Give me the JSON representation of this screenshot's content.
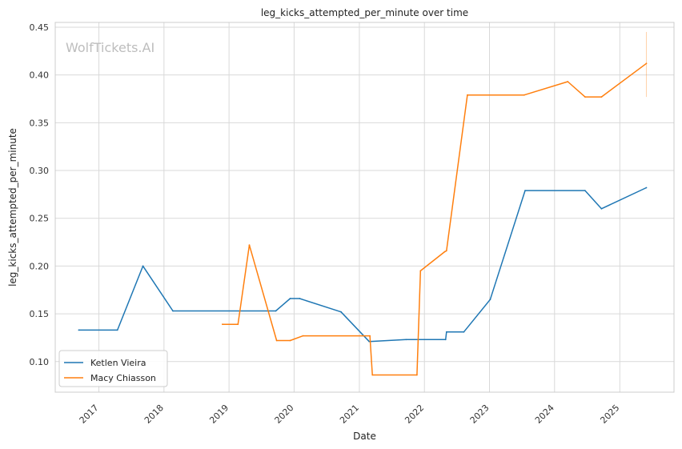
{
  "chart_data": {
    "type": "line",
    "title": "leg_kicks_attempted_per_minute over time",
    "xlabel": "Date",
    "ylabel": "leg_kicks_attempted_per_minute",
    "watermark": "WolfTickets.AI",
    "xlim": [
      "2016-05-01",
      "2025-11-01"
    ],
    "ylim": [
      0.068,
      0.455
    ],
    "x_ticks": [
      "2017-01-01",
      "2018-01-01",
      "2019-01-01",
      "2020-01-01",
      "2021-01-01",
      "2022-01-01",
      "2023-01-01",
      "2024-01-01",
      "2025-01-01"
    ],
    "x_tick_labels": [
      "2017",
      "2018",
      "2019",
      "2020",
      "2021",
      "2022",
      "2023",
      "2024",
      "2025"
    ],
    "y_ticks": [
      0.1,
      0.15,
      0.2,
      0.25,
      0.3,
      0.35,
      0.4,
      0.45
    ],
    "y_tick_labels": [
      "0.10",
      "0.15",
      "0.20",
      "0.25",
      "0.30",
      "0.35",
      "0.40",
      "0.45"
    ],
    "grid": true,
    "legend_position": "lower-left",
    "series": [
      {
        "name": "Ketlen Vieira",
        "color": "#1f77b4",
        "points": [
          [
            "2016-09-10",
            0.133
          ],
          [
            "2017-04-15",
            0.133
          ],
          [
            "2017-09-05",
            0.2
          ],
          [
            "2018-02-20",
            0.153
          ],
          [
            "2019-09-20",
            0.153
          ],
          [
            "2019-12-10",
            0.166
          ],
          [
            "2020-02-01",
            0.166
          ],
          [
            "2020-09-20",
            0.152
          ],
          [
            "2021-02-25",
            0.121
          ],
          [
            "2021-09-20",
            0.123
          ],
          [
            "2022-04-30",
            0.123
          ],
          [
            "2022-05-05",
            0.131
          ],
          [
            "2022-08-10",
            0.131
          ],
          [
            "2023-01-05",
            0.165
          ],
          [
            "2023-07-20",
            0.279
          ],
          [
            "2024-06-20",
            0.279
          ],
          [
            "2024-09-20",
            0.26
          ],
          [
            "2025-05-30",
            0.282
          ]
        ]
      },
      {
        "name": "Macy Chiasson",
        "color": "#ff7f0e",
        "points": [
          [
            "2018-11-25",
            0.139
          ],
          [
            "2019-02-20",
            0.139
          ],
          [
            "2019-04-25",
            0.222
          ],
          [
            "2019-09-25",
            0.122
          ],
          [
            "2019-12-10",
            0.122
          ],
          [
            "2020-02-20",
            0.127
          ],
          [
            "2021-03-01",
            0.127
          ],
          [
            "2021-03-15",
            0.086
          ],
          [
            "2021-11-20",
            0.086
          ],
          [
            "2021-12-10",
            0.195
          ],
          [
            "2022-04-25",
            0.215
          ],
          [
            "2022-05-05",
            0.216
          ],
          [
            "2022-08-30",
            0.379
          ],
          [
            "2023-07-15",
            0.379
          ],
          [
            "2024-03-15",
            0.393
          ],
          [
            "2024-06-20",
            0.377
          ],
          [
            "2024-09-20",
            0.377
          ],
          [
            "2025-05-30",
            0.412
          ]
        ],
        "error_bar": {
          "x": "2025-05-30",
          "low": 0.377,
          "high": 0.445
        }
      }
    ]
  }
}
